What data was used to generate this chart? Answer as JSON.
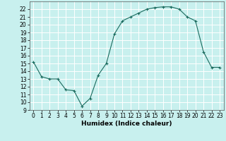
{
  "x": [
    0,
    1,
    2,
    3,
    4,
    5,
    6,
    7,
    8,
    9,
    10,
    11,
    12,
    13,
    14,
    15,
    16,
    17,
    18,
    19,
    20,
    21,
    22,
    23
  ],
  "y": [
    15.2,
    13.3,
    13.0,
    13.0,
    11.6,
    11.5,
    9.5,
    10.5,
    13.5,
    15.0,
    18.8,
    20.5,
    21.0,
    21.5,
    22.0,
    22.2,
    22.3,
    22.3,
    22.0,
    21.0,
    20.5,
    16.5,
    14.5,
    14.5
  ],
  "line_color": "#1a6b5e",
  "marker_color": "#1a6b5e",
  "bg_color": "#c8f0ee",
  "grid_color": "#ffffff",
  "xlabel": "Humidex (Indice chaleur)",
  "xlim": [
    -0.5,
    23.5
  ],
  "ylim": [
    9,
    23
  ],
  "yticks": [
    9,
    10,
    11,
    12,
    13,
    14,
    15,
    16,
    17,
    18,
    19,
    20,
    21,
    22
  ],
  "xticks": [
    0,
    1,
    2,
    3,
    4,
    5,
    6,
    7,
    8,
    9,
    10,
    11,
    12,
    13,
    14,
    15,
    16,
    17,
    18,
    19,
    20,
    21,
    22,
    23
  ],
  "tick_fontsize": 5.5,
  "label_fontsize": 6.5
}
